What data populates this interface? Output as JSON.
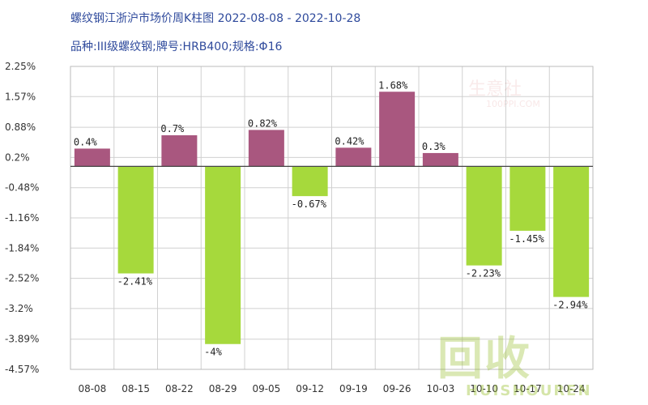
{
  "title": "螺纹钢江浙沪市场价周K柱图 2022-08-08 - 2022-10-28",
  "subtitle": "品种:III级螺纹钢;牌号:HRB400;规格:Φ16",
  "watermark": {
    "top_line1": "生意社",
    "top_line2": "100PPI.COM",
    "big": "回收",
    "small": "HUISHOUREN"
  },
  "colors": {
    "positive": "#a9577f",
    "negative": "#a6d93c",
    "grid": "#d0d0d0",
    "axis": "#444444"
  },
  "chart_data": {
    "type": "bar",
    "categories": [
      "08-08",
      "08-15",
      "08-22",
      "08-29",
      "09-05",
      "09-12",
      "09-19",
      "09-26",
      "10-03",
      "10-10",
      "10-17",
      "10-24"
    ],
    "values": [
      0.4,
      -2.41,
      0.7,
      -4,
      0.82,
      -0.67,
      0.42,
      1.68,
      0.3,
      -2.23,
      -1.45,
      -2.94
    ],
    "data_labels": [
      "0.4%",
      "-2.41%",
      "0.7%",
      "-4%",
      "0.82%",
      "-0.67%",
      "0.42%",
      "1.68%",
      "0.3%",
      "-2.23%",
      "-1.45%",
      "-2.94%"
    ],
    "yticks": [
      2.25,
      1.57,
      0.88,
      0.2,
      -0.48,
      -1.16,
      -1.84,
      -2.52,
      -3.2,
      -3.89,
      -4.57
    ],
    "ytick_labels": [
      "2.25%",
      "1.57%",
      "0.88%",
      "0.2%",
      "-0.48%",
      "-1.16%",
      "-1.84%",
      "-2.52%",
      "-3.2%",
      "-3.89%",
      "-4.57%"
    ],
    "ylim": [
      -4.57,
      2.25
    ],
    "grid": true
  }
}
